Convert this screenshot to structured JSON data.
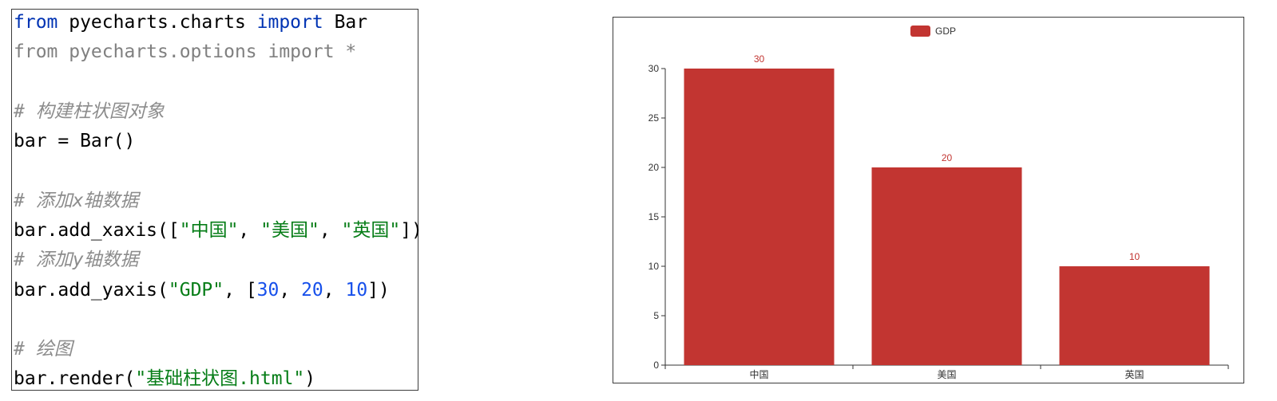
{
  "code": {
    "line1": {
      "kw1": "from",
      "mod": " pyecharts.charts ",
      "kw2": "import",
      "name": " Bar"
    },
    "line2": {
      "text": "from pyecharts.options import *"
    },
    "line3": {
      "comment": "# 构建柱状图对象"
    },
    "line4": {
      "text": "bar = Bar()"
    },
    "line5": {
      "comment": "# 添加x轴数据"
    },
    "line6": {
      "prefix": "bar.add_xaxis([",
      "s1": "\"中国\"",
      "sep1": ", ",
      "s2": "\"美国\"",
      "sep2": ", ",
      "s3": "\"英国\"",
      "suffix": "])"
    },
    "line7": {
      "comment": "# 添加y轴数据"
    },
    "line8": {
      "prefix": "bar.add_yaxis(",
      "s1": "\"GDP\"",
      "sep1": ", [",
      "n1": "30",
      "sep2": ", ",
      "n2": "20",
      "sep3": ", ",
      "n3": "10",
      "suffix": "])"
    },
    "line9": {
      "comment": "# 绘图"
    },
    "line10": {
      "prefix": "bar.render(",
      "s1": "\"基础柱状图.html\"",
      "suffix": ")"
    }
  },
  "colors": {
    "bar": "#c23531",
    "keyword": "#0033b3",
    "string": "#067d17",
    "number": "#1750eb",
    "comment": "#8c8c8c"
  },
  "chart_data": {
    "type": "bar",
    "categories": [
      "中国",
      "美国",
      "英国"
    ],
    "series": [
      {
        "name": "GDP",
        "values": [
          30,
          20,
          10
        ]
      }
    ],
    "ylim": [
      0,
      30
    ],
    "yticks": [
      0,
      5,
      10,
      15,
      20,
      25,
      30
    ],
    "legend": {
      "labels": [
        "GDP"
      ],
      "position": "top-center"
    },
    "data_labels": true,
    "grid": false,
    "title": "",
    "xlabel": "",
    "ylabel": ""
  }
}
